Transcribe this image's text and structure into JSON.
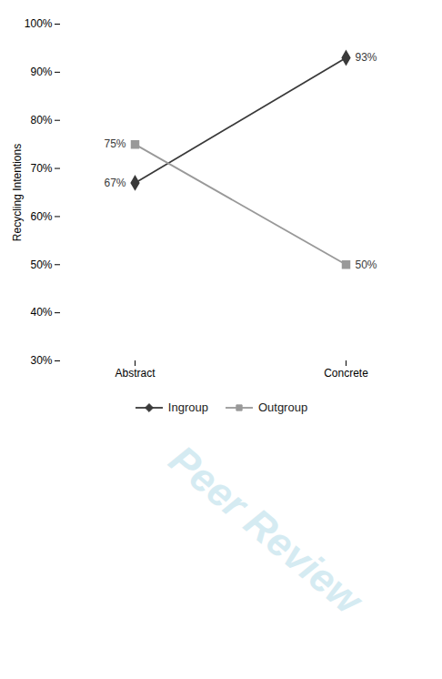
{
  "chart_data": {
    "type": "line",
    "categories": [
      "Abstract",
      "Concrete"
    ],
    "series": [
      {
        "name": "Ingroup",
        "color": "#3a3a3a",
        "marker": "diamond",
        "values": [
          0.67,
          0.93
        ],
        "value_labels": [
          "67%",
          "93%"
        ]
      },
      {
        "name": "Outgroup",
        "color": "#999999",
        "marker": "square",
        "values": [
          0.75,
          0.5
        ],
        "value_labels": [
          "75%",
          "50%"
        ]
      }
    ],
    "ylabel": "Recycling Intentions",
    "ylim": [
      0.3,
      1.0
    ],
    "yticks": [
      {
        "value": 0.3,
        "label": "30%"
      },
      {
        "value": 0.4,
        "label": "40%"
      },
      {
        "value": 0.5,
        "label": "50%"
      },
      {
        "value": 0.6,
        "label": "60%"
      },
      {
        "value": 0.7,
        "label": "70%"
      },
      {
        "value": 0.8,
        "label": "80%"
      },
      {
        "value": 0.9,
        "label": "90%"
      },
      {
        "value": 1.0,
        "label": "100%"
      }
    ],
    "data_labels": true,
    "legend": "bottom",
    "grid": false,
    "annotations": [
      {
        "text": "Peer Review",
        "color": "#add8e6"
      }
    ]
  }
}
